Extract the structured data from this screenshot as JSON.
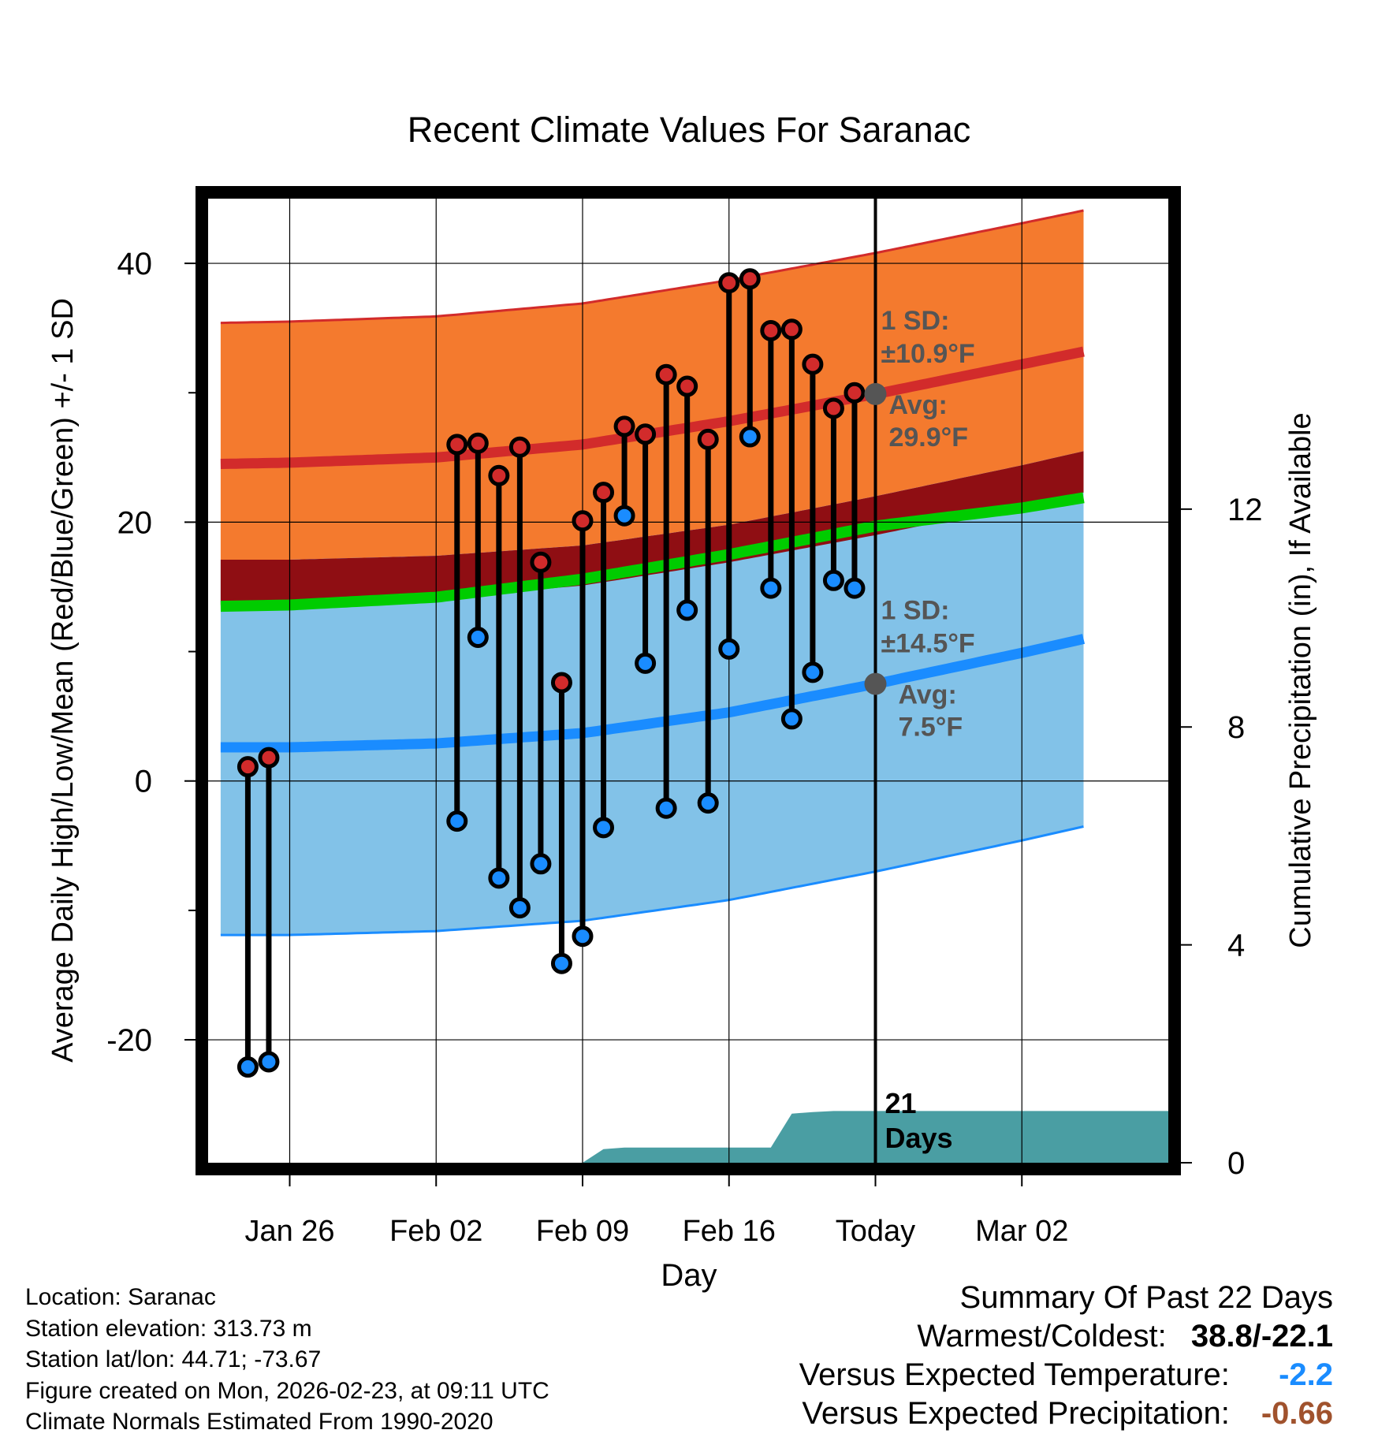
{
  "chart_data": {
    "type": "line",
    "title": "Recent Climate Values For Saranac",
    "xlabel": "Day",
    "ylabel": "Average Daily High/Low/Mean (Red/Blue/Green) +/- 1 SD",
    "y2label": "Cumulative Precipitation (in), If Available",
    "ylim": [
      -29.5,
      45
    ],
    "y2lim": [
      0,
      17.7
    ],
    "xlim": [
      -3.9,
      42
    ],
    "x_ticks": [
      {
        "x": 0,
        "label": "Jan 26"
      },
      {
        "x": 7,
        "label": "Feb 02"
      },
      {
        "x": 14,
        "label": "Feb 09"
      },
      {
        "x": 21,
        "label": "Feb 16"
      },
      {
        "x": 28,
        "label": "Today"
      },
      {
        "x": 35,
        "label": "Mar 02"
      }
    ],
    "y_ticks": [
      -20,
      0,
      20,
      40
    ],
    "y2_ticks": [
      0,
      4,
      8,
      12
    ],
    "grid": true,
    "today_x": 28,
    "normals": {
      "x": [
        -3.3,
        0,
        7,
        14,
        21,
        28,
        35,
        38
      ],
      "high_avg": [
        24.5,
        24.6,
        25.0,
        26.0,
        27.8,
        29.9,
        32.2,
        33.2
      ],
      "high_sd": 10.9,
      "low_avg": [
        2.6,
        2.6,
        2.9,
        3.7,
        5.3,
        7.5,
        9.9,
        11.0
      ],
      "low_sd": 14.5,
      "mean_avg": [
        13.5,
        13.6,
        14.2,
        15.6,
        17.5,
        19.7,
        21.1,
        21.9
      ]
    },
    "observations": {
      "x": [
        -2,
        -1,
        8,
        9,
        10,
        11,
        12,
        13,
        14,
        15,
        16,
        17,
        18,
        19,
        20,
        21,
        22,
        23,
        24,
        25,
        26,
        27
      ],
      "high": [
        1.1,
        1.8,
        26.0,
        26.1,
        23.6,
        25.8,
        16.9,
        7.6,
        20.1,
        22.3,
        27.4,
        26.8,
        31.4,
        30.5,
        26.4,
        38.5,
        38.8,
        34.8,
        34.9,
        32.2,
        28.8,
        30.0
      ],
      "low": [
        -22.1,
        -21.7,
        -3.1,
        11.1,
        -7.5,
        -9.8,
        -6.4,
        -14.1,
        -12.0,
        -3.6,
        20.5,
        9.1,
        -2.1,
        13.2,
        -1.7,
        10.2,
        26.6,
        14.9,
        4.8,
        8.4,
        15.5,
        14.9
      ]
    },
    "precipitation": {
      "x": [
        14,
        15,
        16,
        22,
        23,
        24,
        25,
        26,
        27,
        28,
        42
      ],
      "cumulative": [
        0.0,
        0.25,
        0.28,
        0.28,
        0.28,
        0.9,
        0.93,
        0.95,
        0.95,
        0.95,
        0.95
      ]
    },
    "annotations": {
      "high_sd": "1 SD:",
      "high_sd_value": "±10.9°F",
      "high_avg": "Avg:",
      "high_avg_value": "29.9°F",
      "low_sd": "1 SD:",
      "low_sd_value": "±14.5°F",
      "low_avg": "Avg:",
      "low_avg_value": "7.5°F",
      "days_count": "21",
      "days_word": "Days"
    },
    "colors": {
      "high_band": "#f47a2e",
      "high_line": "#d22b2b",
      "low_band": "#82c2e8",
      "low_line": "#1a8cff",
      "mean_band": "#8f0e13",
      "mean_line": "#00cc00",
      "precip": "#4a9ea3",
      "high_dot": "#d22b2b",
      "low_dot": "#1a8cff",
      "avg_marker": "#555555",
      "annotation_text": "#555555"
    }
  },
  "info": {
    "location": "Location: Saranac",
    "elevation": "Station elevation: 313.73 m",
    "latlon": "Station lat/lon: 44.71; -73.67",
    "created": "Figure created on Mon, 2026-02-23, at 09:11 UTC",
    "normals": "Climate Normals Estimated From 1990-2020"
  },
  "summary": {
    "title": "Summary Of Past 22 Days",
    "warmest_label": "Warmest/Coldest:",
    "warmest_value": "38.8/-22.1",
    "temp_label": "Versus Expected Temperature:",
    "temp_value": "-2.2",
    "temp_color": "#1a8cff",
    "precip_label": "Versus Expected Precipitation:",
    "precip_value": "-0.66",
    "precip_color": "#a0522d"
  }
}
